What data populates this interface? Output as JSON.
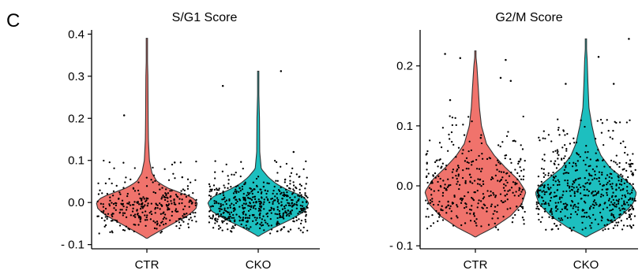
{
  "figure": {
    "panel_label": "C"
  },
  "colors": {
    "CTR": "#F0736C",
    "CKO": "#1DBFBF",
    "point": "#000000",
    "axis": "#000000"
  },
  "chart_data": [
    {
      "type": "violin",
      "title": "S/G1 Score",
      "xlabel": "",
      "ylabel": "",
      "categories": [
        "CTR",
        "CKO"
      ],
      "ylim": [
        -0.11,
        0.41
      ],
      "yticks": [
        -0.1,
        0.0,
        0.1,
        0.2,
        0.3,
        0.4
      ],
      "ytick_labels": [
        "- 0.1",
        "0.0",
        "0.1",
        "0.2",
        "0.3",
        "0.4"
      ],
      "grid": false,
      "legend": "none",
      "series": [
        {
          "category": "CTR",
          "min": -0.085,
          "max": 0.39,
          "median": 0.0,
          "density": [
            [
              -0.085,
              0.0
            ],
            [
              -0.07,
              0.22
            ],
            [
              -0.05,
              0.52
            ],
            [
              -0.03,
              0.82
            ],
            [
              -0.015,
              0.97
            ],
            [
              0.0,
              1.0
            ],
            [
              0.012,
              0.9
            ],
            [
              0.025,
              0.62
            ],
            [
              0.035,
              0.4
            ],
            [
              0.05,
              0.2
            ],
            [
              0.07,
              0.1
            ],
            [
              0.1,
              0.05
            ],
            [
              0.15,
              0.03
            ],
            [
              0.2,
              0.025
            ],
            [
              0.3,
              0.02
            ],
            [
              0.39,
              0.0
            ]
          ],
          "points": {
            "count": 320,
            "range": [
              -0.08,
              0.1
            ]
          },
          "outliers": [
            [
              -0.45,
              0.207
            ],
            [
              0.55,
              0.095
            ],
            [
              0.7,
              0.06
            ]
          ]
        },
        {
          "category": "CKO",
          "min": -0.08,
          "max": 0.312,
          "median": 0.0,
          "density": [
            [
              -0.08,
              0.0
            ],
            [
              -0.06,
              0.3
            ],
            [
              -0.04,
              0.65
            ],
            [
              -0.02,
              0.93
            ],
            [
              0.0,
              1.0
            ],
            [
              0.015,
              0.88
            ],
            [
              0.03,
              0.58
            ],
            [
              0.045,
              0.35
            ],
            [
              0.06,
              0.2
            ],
            [
              0.08,
              0.06
            ],
            [
              0.12,
              0.03
            ],
            [
              0.2,
              0.025
            ],
            [
              0.312,
              0.0
            ]
          ],
          "points": {
            "count": 520,
            "range": [
              -0.08,
              0.1
            ]
          },
          "outliers": [
            [
              -0.7,
              0.277
            ],
            [
              0.45,
              0.312
            ],
            [
              0.7,
              0.12
            ]
          ]
        }
      ]
    },
    {
      "type": "violin",
      "title": "G2/M Score",
      "xlabel": "",
      "ylabel": "",
      "categories": [
        "CTR",
        "CKO"
      ],
      "ylim": [
        -0.105,
        0.26
      ],
      "yticks": [
        -0.1,
        0.0,
        0.1,
        0.2
      ],
      "ytick_labels": [
        "- 0.1",
        "0.0",
        "0.1",
        "0.2"
      ],
      "grid": false,
      "legend": "none",
      "series": [
        {
          "category": "CTR",
          "min": -0.085,
          "max": 0.225,
          "median": -0.01,
          "density": [
            [
              -0.085,
              0.0
            ],
            [
              -0.07,
              0.35
            ],
            [
              -0.05,
              0.7
            ],
            [
              -0.03,
              0.92
            ],
            [
              -0.01,
              1.0
            ],
            [
              0.01,
              0.85
            ],
            [
              0.03,
              0.6
            ],
            [
              0.05,
              0.38
            ],
            [
              0.07,
              0.22
            ],
            [
              0.1,
              0.12
            ],
            [
              0.13,
              0.08
            ],
            [
              0.16,
              0.06
            ],
            [
              0.2,
              0.03
            ],
            [
              0.225,
              0.0
            ]
          ],
          "points": {
            "count": 360,
            "range": [
              -0.075,
              0.12
            ]
          },
          "outliers": [
            [
              -0.6,
              0.22
            ],
            [
              -0.3,
              0.213
            ],
            [
              0.6,
              0.21
            ],
            [
              0.5,
              0.18
            ],
            [
              0.7,
              0.175
            ],
            [
              -0.5,
              0.143
            ]
          ]
        },
        {
          "category": "CKO",
          "min": -0.085,
          "max": 0.245,
          "median": -0.01,
          "density": [
            [
              -0.085,
              0.0
            ],
            [
              -0.07,
              0.35
            ],
            [
              -0.05,
              0.7
            ],
            [
              -0.03,
              0.93
            ],
            [
              -0.012,
              1.0
            ],
            [
              0.0,
              0.92
            ],
            [
              0.015,
              0.7
            ],
            [
              0.03,
              0.48
            ],
            [
              0.05,
              0.3
            ],
            [
              0.07,
              0.2
            ],
            [
              0.1,
              0.12
            ],
            [
              0.13,
              0.06
            ],
            [
              0.17,
              0.04
            ],
            [
              0.21,
              0.025
            ],
            [
              0.245,
              0.0
            ]
          ],
          "points": {
            "count": 560,
            "range": [
              -0.075,
              0.12
            ]
          },
          "outliers": [
            [
              -0.4,
              0.17
            ],
            [
              0.25,
              0.215
            ],
            [
              0.85,
              0.245
            ],
            [
              0.55,
              0.17
            ]
          ]
        }
      ]
    }
  ]
}
